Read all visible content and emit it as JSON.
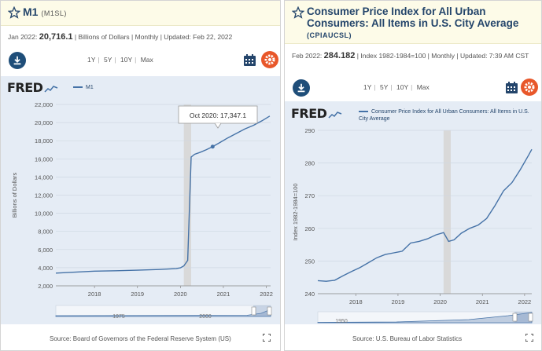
{
  "panels": [
    {
      "title": "M1",
      "series_id": "(M1SL)",
      "meta": {
        "date": "Jan 2022:",
        "value": "20,716.1",
        "units": "| Billions of Dollars | Monthly | Updated: Feb 22, 2022"
      },
      "ranges": [
        "1Y",
        "5Y",
        "10Y",
        "Max"
      ],
      "legend": "M1",
      "source": "Source: Board of Governors of the Federal Reserve System (US)",
      "tooltip": "Oct 2020: 17,347.1",
      "navigator_labels": [
        "1975",
        "2000"
      ]
    },
    {
      "title": "Consumer Price Index for All Urban Consumers: All Items in U.S. City Average",
      "series_id": "(CPIAUCSL)",
      "meta": {
        "date": "Feb 2022:",
        "value": "284.182",
        "units": "| Index 1982-1984=100 | Monthly | Updated: 7:39 AM CST"
      },
      "ranges": [
        "1Y",
        "5Y",
        "10Y",
        "Max"
      ],
      "legend": "Consumer Price Index for All Urban Consumers: All Items in U.S. City Average",
      "source": "Source: U.S. Bureau of Labor Statistics",
      "navigator_labels": [
        "1950"
      ]
    }
  ],
  "logo_text": "FRED",
  "colors": {
    "line": "#4572a7",
    "title": "#24456b",
    "plot_bg": "#e5ecf5",
    "gear": "#e8572a",
    "download": "#1f4e79",
    "recession": "#d9d9d9"
  },
  "chart_data": [
    {
      "type": "line",
      "title": "",
      "ylabel": "Billions of Dollars",
      "xlabel": "",
      "ylim": [
        2000,
        22000
      ],
      "yticks": [
        "2,000",
        "4,000",
        "6,000",
        "8,000",
        "10,000",
        "12,000",
        "14,000",
        "16,000",
        "18,000",
        "20,000",
        "22,000"
      ],
      "xticks": [
        "2018",
        "2019",
        "2020",
        "2021",
        "2022"
      ],
      "xlim": [
        2017.1,
        2022.1
      ],
      "recession": [
        2020.08,
        2020.25
      ],
      "series": [
        {
          "name": "M1",
          "x": [
            2017.1,
            2017.5,
            2018.0,
            2018.5,
            2019.0,
            2019.5,
            2019.9,
            2020.0,
            2020.08,
            2020.17,
            2020.25,
            2020.33,
            2020.45,
            2020.6,
            2020.75,
            2020.92,
            2021.1,
            2021.3,
            2021.5,
            2021.7,
            2021.9,
            2022.08
          ],
          "y": [
            3400,
            3500,
            3620,
            3660,
            3720,
            3800,
            3900,
            3980,
            4200,
            4800,
            16200,
            16500,
            16700,
            17000,
            17347.1,
            17800,
            18300,
            18800,
            19300,
            19700,
            20200,
            20716.1
          ]
        }
      ]
    },
    {
      "type": "line",
      "title": "",
      "ylabel": "Index 1982-1984=100",
      "xlabel": "",
      "ylim": [
        240,
        290
      ],
      "yticks": [
        "240",
        "250",
        "260",
        "270",
        "280",
        "290"
      ],
      "xticks": [
        "2018",
        "2019",
        "2020",
        "2021",
        "2022"
      ],
      "xlim": [
        2017.1,
        2022.17
      ],
      "recession": [
        2020.08,
        2020.25
      ],
      "series": [
        {
          "name": "Consumer Price Index for All Urban Consumers: All Items in U.S. City Average",
          "x": [
            2017.1,
            2017.3,
            2017.5,
            2017.7,
            2017.9,
            2018.1,
            2018.3,
            2018.5,
            2018.7,
            2018.9,
            2019.1,
            2019.3,
            2019.5,
            2019.7,
            2019.9,
            2020.08,
            2020.2,
            2020.33,
            2020.5,
            2020.7,
            2020.9,
            2021.1,
            2021.3,
            2021.5,
            2021.7,
            2021.9,
            2022.1,
            2022.17
          ],
          "y": [
            244.0,
            243.8,
            244.1,
            245.5,
            246.8,
            248.0,
            249.5,
            251.0,
            252.0,
            252.5,
            253.0,
            255.5,
            256.0,
            256.8,
            258.0,
            258.7,
            256.0,
            256.5,
            258.5,
            260.0,
            261.0,
            263.0,
            267.0,
            271.5,
            274.0,
            278.0,
            282.5,
            284.18
          ]
        }
      ]
    }
  ]
}
